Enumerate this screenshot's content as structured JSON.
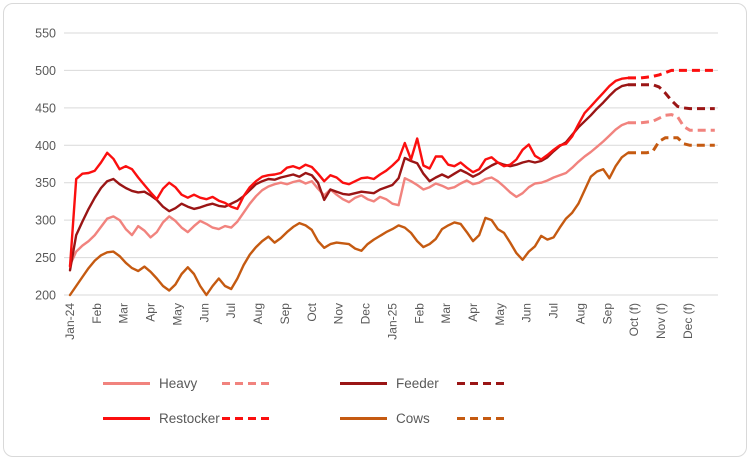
{
  "chart_data": {
    "type": "line",
    "title": "",
    "xlabel": "",
    "ylabel": "",
    "grid": true,
    "legend_position": "bottom",
    "y_axis": {
      "min": 200,
      "max": 550,
      "step": 50,
      "ticks": [
        550,
        500,
        450,
        400,
        350,
        300,
        250,
        200
      ]
    },
    "x_axis": {
      "labels": [
        "Jan-24",
        "Feb",
        "Mar",
        "Apr",
        "May",
        "Jun",
        "Jul",
        "Aug",
        "Sep",
        "Oct",
        "Nov",
        "Dec",
        "Jan-25",
        "Feb",
        "Mar",
        "Apr",
        "May",
        "Jun",
        "Jul",
        "Aug",
        "Sep",
        "Oct (f)",
        "Nov (f)",
        "Dec (f)"
      ],
      "weeks_per_month": 4.3333,
      "weeks_total": 104,
      "forecast_start_week": 90
    },
    "series": [
      {
        "name": "Heavy",
        "color": "#F1837E",
        "actual": [
          240,
          258,
          266,
          272,
          280,
          291,
          302,
          305,
          300,
          288,
          280,
          292,
          286,
          277,
          284,
          297,
          305,
          299,
          290,
          284,
          292,
          299,
          295,
          290,
          288,
          292,
          290,
          298,
          310,
          322,
          332,
          340,
          345,
          348,
          350,
          348,
          351,
          353,
          349,
          352,
          342,
          333,
          341,
          334,
          328,
          324,
          330,
          333,
          328,
          325,
          331,
          328,
          322,
          320,
          356,
          352,
          347,
          341,
          344,
          349,
          346,
          342,
          344,
          349,
          353,
          348,
          350,
          355,
          357,
          352,
          345,
          337,
          331,
          336,
          344,
          349,
          350,
          353,
          357,
          360,
          363,
          370,
          378,
          385,
          391,
          398,
          405,
          413,
          421,
          427,
          430
        ],
        "forecast": [
          430,
          430,
          430,
          431,
          432,
          436,
          440,
          441,
          438,
          425,
          420,
          420,
          420,
          420,
          420
        ]
      },
      {
        "name": "Feeder",
        "color": "#9A1515",
        "actual": [
          233,
          280,
          298,
          315,
          330,
          343,
          352,
          355,
          348,
          343,
          339,
          337,
          338,
          333,
          327,
          318,
          312,
          316,
          322,
          318,
          315,
          317,
          320,
          322,
          319,
          318,
          322,
          326,
          332,
          340,
          348,
          352,
          355,
          354,
          357,
          359,
          361,
          358,
          363,
          360,
          350,
          327,
          341,
          338,
          335,
          334,
          336,
          338,
          337,
          336,
          341,
          344,
          347,
          356,
          383,
          379,
          376,
          362,
          352,
          357,
          361,
          357,
          362,
          367,
          363,
          358,
          362,
          368,
          373,
          377,
          374,
          372,
          374,
          377,
          379,
          377,
          379,
          384,
          392,
          399,
          404,
          414,
          424,
          432,
          440,
          449,
          457,
          466,
          474,
          479,
          481
        ],
        "forecast": [
          481,
          481,
          481,
          481,
          481,
          478,
          470,
          460,
          452,
          450,
          449,
          449,
          449,
          449,
          449
        ]
      },
      {
        "name": "Restocker",
        "color": "#FB0F0F",
        "actual": [
          238,
          355,
          362,
          363,
          366,
          377,
          390,
          382,
          368,
          372,
          368,
          357,
          347,
          337,
          328,
          342,
          350,
          344,
          334,
          330,
          334,
          330,
          328,
          331,
          326,
          323,
          318,
          315,
          332,
          344,
          352,
          358,
          360,
          361,
          363,
          370,
          372,
          369,
          374,
          371,
          362,
          352,
          360,
          357,
          350,
          348,
          352,
          356,
          357,
          355,
          361,
          366,
          373,
          381,
          403,
          381,
          409,
          373,
          369,
          385,
          385,
          374,
          372,
          377,
          370,
          364,
          368,
          381,
          384,
          377,
          372,
          374,
          381,
          394,
          401,
          386,
          381,
          387,
          394,
          400,
          402,
          412,
          428,
          443,
          452,
          461,
          470,
          479,
          486,
          489,
          490
        ],
        "forecast": [
          490,
          490,
          490,
          491,
          492,
          494,
          497,
          500,
          500,
          500,
          500,
          500,
          500,
          500,
          500
        ]
      },
      {
        "name": "Cows",
        "color": "#C55A11",
        "actual": [
          200,
          212,
          224,
          236,
          246,
          253,
          257,
          258,
          252,
          243,
          236,
          232,
          238,
          231,
          222,
          212,
          206,
          214,
          228,
          237,
          228,
          212,
          200,
          212,
          222,
          212,
          208,
          222,
          240,
          254,
          264,
          272,
          278,
          270,
          276,
          284,
          291,
          296,
          293,
          287,
          272,
          263,
          268,
          270,
          269,
          268,
          262,
          259,
          268,
          274,
          279,
          284,
          288,
          293,
          290,
          283,
          272,
          264,
          268,
          275,
          288,
          293,
          297,
          295,
          284,
          272,
          280,
          303,
          300,
          288,
          283,
          270,
          256,
          247,
          258,
          265,
          279,
          274,
          277,
          290,
          302,
          310,
          322,
          340,
          358,
          365,
          368,
          356,
          372,
          384,
          390
        ],
        "forecast": [
          390,
          390,
          390,
          390,
          392,
          405,
          410,
          410,
          410,
          402,
          400,
          400,
          400,
          400,
          400
        ]
      }
    ]
  },
  "style": {
    "grid_color": "#D9D9D9",
    "border_color": "#D9D9D9",
    "text_color": "#595959",
    "background": "#FFFFFF"
  }
}
